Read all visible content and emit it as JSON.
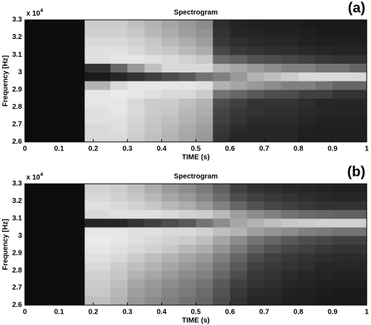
{
  "chart_data": [
    {
      "type": "heatmap",
      "title": "Spectrogram",
      "panel_label": "(a)",
      "x_label": "TIME (s)",
      "y_label": "Frequency [Hz]",
      "y_scale_label": {
        "text": "x 10",
        "exponent": "4"
      },
      "xlim": [
        0,
        1
      ],
      "xticks": [
        0,
        0.1,
        0.2,
        0.3,
        0.4,
        0.5,
        0.6,
        0.7,
        0.8,
        0.9,
        1
      ],
      "ylim": [
        2.6,
        3.3
      ],
      "yticks": [
        2.6,
        2.7,
        2.8,
        2.9,
        3,
        3.1,
        3.2,
        3.3
      ],
      "x_bins": [
        0,
        0.175,
        0.25,
        0.3,
        0.35,
        0.4,
        0.45,
        0.5,
        0.55,
        0.6,
        0.65,
        0.7,
        0.75,
        0.8,
        0.85,
        0.9,
        0.95,
        1
      ],
      "y_bins": [
        2.6,
        2.65,
        2.7,
        2.75,
        2.8,
        2.85,
        2.9,
        2.95,
        3,
        3.05,
        3.1,
        3.15,
        3.2,
        3.25,
        3.3
      ],
      "z": [
        [
          0.05,
          0.85,
          0.85,
          0.8,
          0.75,
          0.7,
          0.65,
          0.6,
          0.2,
          0.15,
          0.15,
          0.15,
          0.15,
          0.12,
          0.12,
          0.12,
          0.12
        ],
        [
          0.05,
          0.85,
          0.87,
          0.82,
          0.77,
          0.72,
          0.67,
          0.62,
          0.22,
          0.17,
          0.15,
          0.15,
          0.15,
          0.13,
          0.12,
          0.12,
          0.12
        ],
        [
          0.05,
          0.88,
          0.88,
          0.83,
          0.78,
          0.75,
          0.7,
          0.65,
          0.25,
          0.2,
          0.17,
          0.17,
          0.17,
          0.15,
          0.13,
          0.13,
          0.13
        ],
        [
          0.05,
          0.88,
          0.9,
          0.85,
          0.8,
          0.78,
          0.72,
          0.68,
          0.27,
          0.22,
          0.2,
          0.18,
          0.18,
          0.16,
          0.15,
          0.14,
          0.14
        ],
        [
          0.05,
          0.9,
          0.9,
          0.85,
          0.8,
          0.8,
          0.75,
          0.7,
          0.3,
          0.25,
          0.2,
          0.2,
          0.2,
          0.18,
          0.15,
          0.15,
          0.15
        ],
        [
          0.05,
          0.9,
          0.92,
          0.9,
          0.88,
          0.85,
          0.85,
          0.8,
          0.45,
          0.4,
          0.35,
          0.3,
          0.3,
          0.25,
          0.25,
          0.2,
          0.2
        ],
        [
          0.05,
          0.7,
          0.85,
          0.9,
          0.9,
          0.9,
          0.9,
          0.88,
          0.7,
          0.65,
          0.6,
          0.55,
          0.5,
          0.5,
          0.45,
          0.4,
          0.4
        ],
        [
          0.05,
          0.1,
          0.15,
          0.2,
          0.25,
          0.3,
          0.35,
          0.45,
          0.5,
          0.6,
          0.7,
          0.75,
          0.8,
          0.85,
          0.85,
          0.85,
          0.85
        ],
        [
          0.05,
          0.2,
          0.4,
          0.6,
          0.75,
          0.85,
          0.85,
          0.85,
          0.7,
          0.65,
          0.6,
          0.55,
          0.5,
          0.5,
          0.45,
          0.45,
          0.4
        ],
        [
          0.05,
          0.88,
          0.9,
          0.9,
          0.88,
          0.85,
          0.82,
          0.78,
          0.42,
          0.38,
          0.32,
          0.3,
          0.28,
          0.25,
          0.22,
          0.2,
          0.2
        ],
        [
          0.05,
          0.88,
          0.88,
          0.85,
          0.8,
          0.78,
          0.72,
          0.68,
          0.28,
          0.22,
          0.2,
          0.18,
          0.18,
          0.16,
          0.15,
          0.14,
          0.14
        ],
        [
          0.05,
          0.85,
          0.85,
          0.82,
          0.78,
          0.72,
          0.68,
          0.62,
          0.22,
          0.18,
          0.16,
          0.15,
          0.15,
          0.13,
          0.12,
          0.12,
          0.12
        ],
        [
          0.05,
          0.82,
          0.82,
          0.78,
          0.72,
          0.68,
          0.62,
          0.58,
          0.2,
          0.15,
          0.14,
          0.13,
          0.13,
          0.12,
          0.11,
          0.11,
          0.11
        ],
        [
          0.05,
          0.8,
          0.8,
          0.75,
          0.7,
          0.65,
          0.6,
          0.55,
          0.18,
          0.14,
          0.13,
          0.12,
          0.12,
          0.11,
          0.1,
          0.1,
          0.1
        ]
      ]
    },
    {
      "type": "heatmap",
      "title": "Spectrogram",
      "panel_label": "(b)",
      "x_label": "TIME (s)",
      "y_label": "Frequency [Hz]",
      "y_scale_label": {
        "text": "x 10",
        "exponent": "4"
      },
      "xlim": [
        0,
        1
      ],
      "xticks": [
        0,
        0.1,
        0.2,
        0.3,
        0.4,
        0.5,
        0.6,
        0.7,
        0.8,
        0.9,
        1
      ],
      "ylim": [
        2.6,
        3.3
      ],
      "yticks": [
        2.6,
        2.7,
        2.8,
        2.9,
        3,
        3.1,
        3.2,
        3.3
      ],
      "x_bins": [
        0,
        0.175,
        0.25,
        0.3,
        0.35,
        0.4,
        0.45,
        0.5,
        0.55,
        0.6,
        0.65,
        0.7,
        0.75,
        0.8,
        0.85,
        0.9,
        0.95,
        1
      ],
      "y_bins": [
        2.6,
        2.65,
        2.7,
        2.75,
        2.8,
        2.85,
        2.9,
        2.95,
        3,
        3.05,
        3.1,
        3.15,
        3.2,
        3.25,
        3.3
      ],
      "z": [
        [
          0.05,
          0.75,
          0.7,
          0.6,
          0.55,
          0.5,
          0.45,
          0.4,
          0.3,
          0.2,
          0.15,
          0.15,
          0.12,
          0.12,
          0.1,
          0.1,
          0.1
        ],
        [
          0.05,
          0.78,
          0.72,
          0.62,
          0.58,
          0.52,
          0.48,
          0.42,
          0.32,
          0.22,
          0.17,
          0.16,
          0.13,
          0.12,
          0.11,
          0.1,
          0.1
        ],
        [
          0.05,
          0.8,
          0.75,
          0.65,
          0.6,
          0.55,
          0.5,
          0.45,
          0.35,
          0.25,
          0.2,
          0.18,
          0.15,
          0.14,
          0.12,
          0.12,
          0.12
        ],
        [
          0.05,
          0.82,
          0.78,
          0.7,
          0.65,
          0.6,
          0.55,
          0.5,
          0.4,
          0.3,
          0.22,
          0.2,
          0.17,
          0.15,
          0.14,
          0.13,
          0.13
        ],
        [
          0.05,
          0.85,
          0.8,
          0.75,
          0.7,
          0.65,
          0.6,
          0.55,
          0.45,
          0.35,
          0.25,
          0.22,
          0.2,
          0.18,
          0.15,
          0.15,
          0.15
        ],
        [
          0.05,
          0.88,
          0.85,
          0.8,
          0.75,
          0.7,
          0.65,
          0.6,
          0.5,
          0.4,
          0.3,
          0.25,
          0.22,
          0.2,
          0.18,
          0.17,
          0.17
        ],
        [
          0.05,
          0.9,
          0.88,
          0.85,
          0.82,
          0.78,
          0.72,
          0.68,
          0.58,
          0.48,
          0.38,
          0.32,
          0.28,
          0.25,
          0.22,
          0.2,
          0.2
        ],
        [
          0.05,
          0.92,
          0.9,
          0.88,
          0.85,
          0.82,
          0.8,
          0.75,
          0.65,
          0.55,
          0.45,
          0.4,
          0.35,
          0.3,
          0.28,
          0.25,
          0.25
        ],
        [
          0.05,
          0.9,
          0.9,
          0.88,
          0.88,
          0.85,
          0.85,
          0.82,
          0.75,
          0.7,
          0.62,
          0.58,
          0.55,
          0.5,
          0.48,
          0.45,
          0.45
        ],
        [
          0.05,
          0.15,
          0.15,
          0.2,
          0.25,
          0.3,
          0.35,
          0.45,
          0.55,
          0.65,
          0.7,
          0.75,
          0.78,
          0.8,
          0.82,
          0.82,
          0.82
        ],
        [
          0.05,
          0.85,
          0.88,
          0.88,
          0.88,
          0.85,
          0.82,
          0.8,
          0.72,
          0.62,
          0.55,
          0.5,
          0.45,
          0.42,
          0.4,
          0.38,
          0.38
        ],
        [
          0.05,
          0.88,
          0.85,
          0.82,
          0.78,
          0.72,
          0.68,
          0.6,
          0.5,
          0.4,
          0.32,
          0.28,
          0.25,
          0.22,
          0.2,
          0.2,
          0.2
        ],
        [
          0.05,
          0.85,
          0.82,
          0.78,
          0.72,
          0.65,
          0.6,
          0.52,
          0.42,
          0.3,
          0.25,
          0.22,
          0.2,
          0.18,
          0.16,
          0.15,
          0.15
        ],
        [
          0.05,
          0.82,
          0.8,
          0.75,
          0.68,
          0.6,
          0.55,
          0.48,
          0.38,
          0.25,
          0.2,
          0.18,
          0.16,
          0.15,
          0.14,
          0.13,
          0.13
        ]
      ]
    }
  ]
}
